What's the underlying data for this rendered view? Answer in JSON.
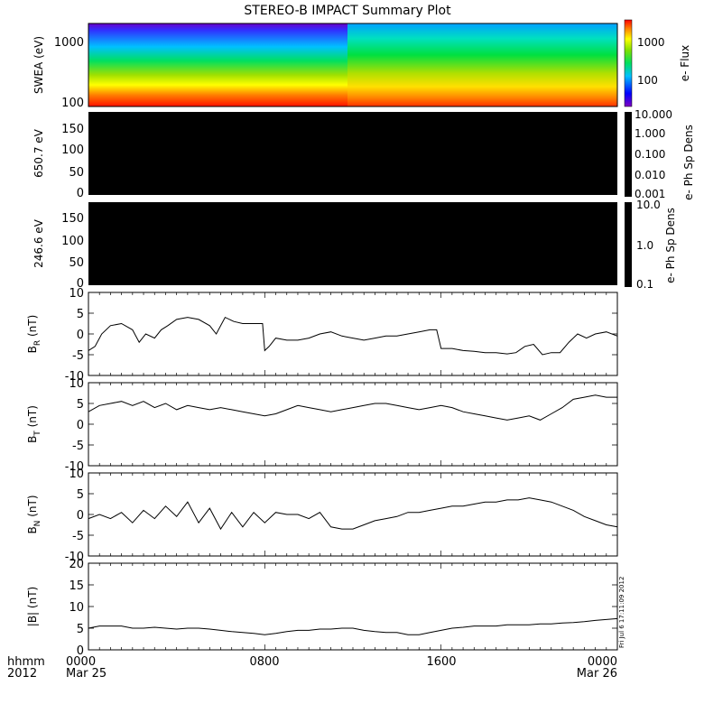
{
  "title": "STEREO-B IMPACT Summary Plot",
  "xaxis": {
    "row1_labels": [
      "hhmm",
      "0000",
      "0800",
      "1600",
      "0000"
    ],
    "row2_labels": [
      "2012",
      "Mar 25",
      "",
      "",
      "Mar 26"
    ]
  },
  "stamp": "Fri Jul  6 17:11:09 2012",
  "chart_data": [
    {
      "type": "heatmap",
      "ylabel": "SWEA (eV)",
      "ylim": [
        100,
        2000
      ],
      "yscale": "log",
      "ytick_labels": [
        "1000",
        "100"
      ],
      "colorbar": {
        "label": "e- Flux",
        "tick_labels": [
          "1000",
          "100"
        ],
        "scale": "log",
        "colors": [
          "#6a00c8",
          "#0000ff",
          "#00c0ff",
          "#00e060",
          "#80e000",
          "#ffff00",
          "#ff8000",
          "#ff0000"
        ]
      },
      "shift_times_hhmm": [
        "1130",
        "1520"
      ]
    },
    {
      "type": "heatmap",
      "ylabel": "650.7 eV",
      "ylim": [
        0,
        180
      ],
      "ytick_labels": [
        "150",
        "100",
        "50",
        "0"
      ],
      "fill": "#000000",
      "colorbar": {
        "label": "e- Ph Sp Dens",
        "tick_labels": [
          "10.000",
          "1.000",
          "0.100",
          "0.010",
          "0.001"
        ],
        "scale": "log"
      }
    },
    {
      "type": "heatmap",
      "ylabel": "246.6 eV",
      "ylim": [
        0,
        180
      ],
      "ytick_labels": [
        "150",
        "100",
        "50",
        "0"
      ],
      "fill": "#000000",
      "colorbar": {
        "label": "e- Ph Sp Dens",
        "tick_labels": [
          "10.0",
          "1.0",
          "0.1"
        ],
        "scale": "log"
      }
    },
    {
      "type": "line",
      "ylabel": "B",
      "ylabel_sub": "R",
      "ylabel_unit": "(nT)",
      "ylim": [
        -10,
        10
      ],
      "ytick_labels": [
        "10",
        "5",
        "0",
        "-5",
        "-10"
      ],
      "x_hours": [
        0,
        0.3,
        0.6,
        1.0,
        1.5,
        2.0,
        2.3,
        2.6,
        3.0,
        3.3,
        3.6,
        4.0,
        4.5,
        5.0,
        5.5,
        5.8,
        6.2,
        6.6,
        7.0,
        7.3,
        7.6,
        7.9,
        8.0,
        8.2,
        8.5,
        9.0,
        9.5,
        10.0,
        10.5,
        11.0,
        11.5,
        12.0,
        12.5,
        13.0,
        13.5,
        14.0,
        14.5,
        15.0,
        15.5,
        15.8,
        16.0,
        16.5,
        17.0,
        17.5,
        18.0,
        18.5,
        19.0,
        19.4,
        19.8,
        20.2,
        20.6,
        21.0,
        21.4,
        21.8,
        22.2,
        22.6,
        23.0,
        23.5,
        24.0
      ],
      "values": [
        -4,
        -3,
        0,
        2,
        2.5,
        1,
        -2,
        0,
        -1,
        1,
        2,
        3.5,
        4,
        3.5,
        2,
        0,
        4,
        3,
        2.5,
        2.5,
        2.5,
        2.5,
        -4,
        -3,
        -1,
        -1.5,
        -1.5,
        -1,
        0,
        0.5,
        -0.5,
        -1,
        -1.5,
        -1,
        -0.5,
        -0.5,
        0,
        0.5,
        1,
        1,
        -3.5,
        -3.5,
        -4,
        -4.2,
        -4.5,
        -4.5,
        -4.8,
        -4.5,
        -3,
        -2.5,
        -5,
        -4.5,
        -4.5,
        -2,
        0,
        -1,
        0,
        0.5,
        -0.5
      ]
    },
    {
      "type": "line",
      "ylabel": "B",
      "ylabel_sub": "T",
      "ylabel_unit": "(nT)",
      "ylim": [
        -10,
        10
      ],
      "ytick_labels": [
        "10",
        "5",
        "0",
        "-5",
        "-10"
      ],
      "x_hours": [
        0,
        0.5,
        1.0,
        1.5,
        2.0,
        2.5,
        3.0,
        3.5,
        4.0,
        4.5,
        5.0,
        5.5,
        6.0,
        6.5,
        7.0,
        7.5,
        8.0,
        8.5,
        9.0,
        9.5,
        10.0,
        10.5,
        11.0,
        11.5,
        12.0,
        12.5,
        13.0,
        13.5,
        14.0,
        14.5,
        15.0,
        15.5,
        16.0,
        16.5,
        17.0,
        17.5,
        18.0,
        18.5,
        19.0,
        19.5,
        20.0,
        20.5,
        21.0,
        21.5,
        22.0,
        22.5,
        23.0,
        23.5,
        24.0
      ],
      "values": [
        3,
        4.5,
        5,
        5.5,
        4.5,
        5.5,
        4,
        5,
        3.5,
        4.5,
        4,
        3.5,
        4,
        3.5,
        3,
        2.5,
        2,
        2.5,
        3.5,
        4.5,
        4,
        3.5,
        3,
        3.5,
        4,
        4.5,
        5,
        5,
        4.5,
        4,
        3.5,
        4,
        4.5,
        4,
        3,
        2.5,
        2,
        1.5,
        1,
        1.5,
        2,
        1,
        2.5,
        4,
        6,
        6.5,
        7,
        6.5,
        6.5
      ]
    },
    {
      "type": "line",
      "ylabel": "B",
      "ylabel_sub": "N",
      "ylabel_unit": "(nT)",
      "ylim": [
        -10,
        10
      ],
      "ytick_labels": [
        "10",
        "5",
        "0",
        "-5",
        "-10"
      ],
      "x_hours": [
        0,
        0.5,
        1.0,
        1.5,
        2.0,
        2.5,
        3.0,
        3.5,
        4.0,
        4.5,
        5.0,
        5.5,
        6.0,
        6.5,
        7.0,
        7.5,
        8.0,
        8.5,
        9.0,
        9.5,
        10.0,
        10.5,
        11.0,
        11.5,
        12.0,
        12.5,
        13.0,
        13.5,
        14.0,
        14.5,
        15.0,
        15.5,
        16.0,
        16.5,
        17.0,
        17.5,
        18.0,
        18.5,
        19.0,
        19.5,
        20.0,
        20.5,
        21.0,
        21.5,
        22.0,
        22.5,
        23.0,
        23.5,
        24.0
      ],
      "values": [
        -1,
        0,
        -1,
        0.5,
        -2,
        1,
        -1,
        2,
        -0.5,
        3,
        -2,
        1.5,
        -3.5,
        0.5,
        -3,
        0.5,
        -2,
        0.5,
        0,
        0,
        -1,
        0.5,
        -3,
        -3.5,
        -3.5,
        -2.5,
        -1.5,
        -1,
        -0.5,
        0.5,
        0.5,
        1,
        1.5,
        2,
        2,
        2.5,
        3,
        3,
        3.5,
        3.5,
        4,
        3.5,
        3,
        2,
        1,
        -0.5,
        -1.5,
        -2.5,
        -3
      ]
    },
    {
      "type": "line",
      "ylabel": "|B| (nT)",
      "ylim": [
        0,
        20
      ],
      "ytick_labels": [
        "20",
        "15",
        "10",
        "5",
        "0"
      ],
      "x_hours": [
        0,
        0.5,
        1.0,
        1.5,
        2.0,
        2.5,
        3.0,
        3.5,
        4.0,
        4.5,
        5.0,
        5.5,
        6.0,
        6.5,
        7.0,
        7.5,
        8.0,
        8.5,
        9.0,
        9.5,
        10.0,
        10.5,
        11.0,
        11.5,
        12.0,
        12.5,
        13.0,
        13.5,
        14.0,
        14.5,
        15.0,
        15.5,
        16.0,
        16.5,
        17.0,
        17.5,
        18.0,
        18.5,
        19.0,
        19.5,
        20.0,
        20.5,
        21.0,
        21.5,
        22.0,
        22.5,
        23.0,
        23.5,
        24.0
      ],
      "values": [
        5,
        5.5,
        5.5,
        5.5,
        5,
        5,
        5.2,
        5,
        4.8,
        5,
        5,
        4.8,
        4.5,
        4.2,
        4,
        3.8,
        3.5,
        3.8,
        4.2,
        4.5,
        4.5,
        4.8,
        4.8,
        5,
        5,
        4.5,
        4.2,
        4,
        4,
        3.5,
        3.5,
        4,
        4.5,
        5,
        5.2,
        5.5,
        5.5,
        5.5,
        5.8,
        5.8,
        5.8,
        6,
        6,
        6.2,
        6.3,
        6.5,
        6.8,
        7,
        7.2
      ]
    }
  ]
}
